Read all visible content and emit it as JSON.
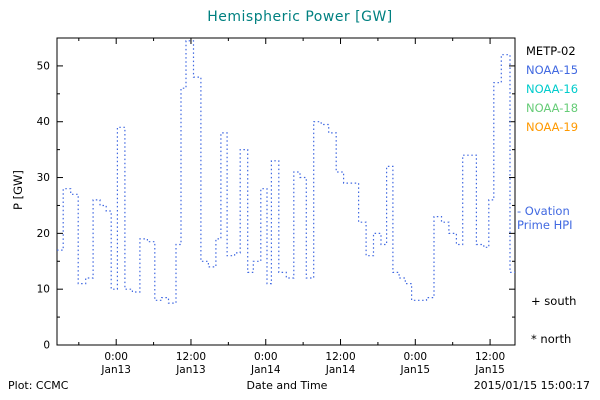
{
  "header": {
    "title": "Hemispheric Power [GW]"
  },
  "colors": {
    "title": "#008080",
    "hpi_line": "#4169e1",
    "model_label": "#4169e1",
    "axis": "#000000"
  },
  "legend": {
    "satellites": [
      {
        "label": "METP-02",
        "color": "#000000"
      },
      {
        "label": "NOAA-15",
        "color": "#4169e1"
      },
      {
        "label": "NOAA-16",
        "color": "#00cccc"
      },
      {
        "label": "NOAA-18",
        "color": "#66cc77"
      },
      {
        "label": "NOAA-19",
        "color": "#ff9900"
      }
    ],
    "model_line1": "- Ovation",
    "model_line2": "Prime HPI",
    "south_label": "+ south",
    "north_label": "* north"
  },
  "footer": {
    "plot_credit": "Plot: CCMC",
    "timestamp": "2015/01/15 15:00:17"
  },
  "chart_data": {
    "type": "line",
    "subtype": "dotted-step",
    "title": "Hemispheric Power [GW]",
    "xlabel": "Date and Time",
    "ylabel": "P [GW]",
    "ylim": [
      0,
      55
    ],
    "xlim_hours_from_jan12_00": [
      14.5,
      88
    ],
    "grid": false,
    "legend_position": "right-outside",
    "yticks": [
      0,
      10,
      20,
      30,
      40,
      50
    ],
    "xticks": [
      {
        "hour": 24,
        "label_time": "0:00",
        "label_date": "Jan13"
      },
      {
        "hour": 36,
        "label_time": "12:00",
        "label_date": "Jan13"
      },
      {
        "hour": 48,
        "label_time": "0:00",
        "label_date": "Jan14"
      },
      {
        "hour": 60,
        "label_time": "12:00",
        "label_date": "Jan14"
      },
      {
        "hour": 72,
        "label_time": "0:00",
        "label_date": "Jan15"
      },
      {
        "hour": 84,
        "label_time": "12:00",
        "label_date": "Jan15"
      }
    ],
    "series": [
      {
        "name": "Ovation Prime HPI",
        "color": "#4169e1",
        "style": "dotted-step",
        "units": "GW",
        "points": [
          [
            14.5,
            17
          ],
          [
            15.5,
            28
          ],
          [
            16.7,
            27
          ],
          [
            17.9,
            11
          ],
          [
            19.1,
            12
          ],
          [
            20.3,
            26
          ],
          [
            21.4,
            25
          ],
          [
            22.4,
            24
          ],
          [
            23.2,
            10
          ],
          [
            24.2,
            39
          ],
          [
            25.4,
            10
          ],
          [
            26.6,
            9.5
          ],
          [
            27.8,
            19
          ],
          [
            29.0,
            18.5
          ],
          [
            30.2,
            8
          ],
          [
            31.3,
            8.5
          ],
          [
            32.4,
            7.5
          ],
          [
            33.6,
            18
          ],
          [
            34.4,
            46
          ],
          [
            35.2,
            54.5
          ],
          [
            36.4,
            48
          ],
          [
            37.6,
            15
          ],
          [
            38.8,
            14
          ],
          [
            40.0,
            19
          ],
          [
            40.8,
            38
          ],
          [
            41.8,
            16
          ],
          [
            43.0,
            16.5
          ],
          [
            43.9,
            35
          ],
          [
            45.1,
            13
          ],
          [
            46.0,
            15
          ],
          [
            47.2,
            28
          ],
          [
            48.2,
            11
          ],
          [
            48.9,
            33
          ],
          [
            50.1,
            13
          ],
          [
            51.3,
            12
          ],
          [
            52.5,
            31
          ],
          [
            53.5,
            30
          ],
          [
            54.5,
            12
          ],
          [
            55.7,
            40
          ],
          [
            56.9,
            39.5
          ],
          [
            58.1,
            38
          ],
          [
            59.3,
            31
          ],
          [
            60.5,
            29
          ],
          [
            61.7,
            29
          ],
          [
            62.9,
            22
          ],
          [
            64.1,
            16
          ],
          [
            65.3,
            20
          ],
          [
            66.5,
            18
          ],
          [
            67.4,
            32
          ],
          [
            68.4,
            13
          ],
          [
            69.4,
            12
          ],
          [
            70.4,
            11
          ],
          [
            71.4,
            8
          ],
          [
            72.6,
            8
          ],
          [
            73.8,
            8.5
          ],
          [
            75.0,
            23
          ],
          [
            76.2,
            22
          ],
          [
            77.4,
            20
          ],
          [
            78.6,
            18
          ],
          [
            79.6,
            34
          ],
          [
            80.8,
            34
          ],
          [
            81.8,
            18
          ],
          [
            83.0,
            17.5
          ],
          [
            83.8,
            26
          ],
          [
            84.6,
            47
          ],
          [
            85.8,
            52
          ],
          [
            87.2,
            13
          ]
        ]
      }
    ]
  }
}
